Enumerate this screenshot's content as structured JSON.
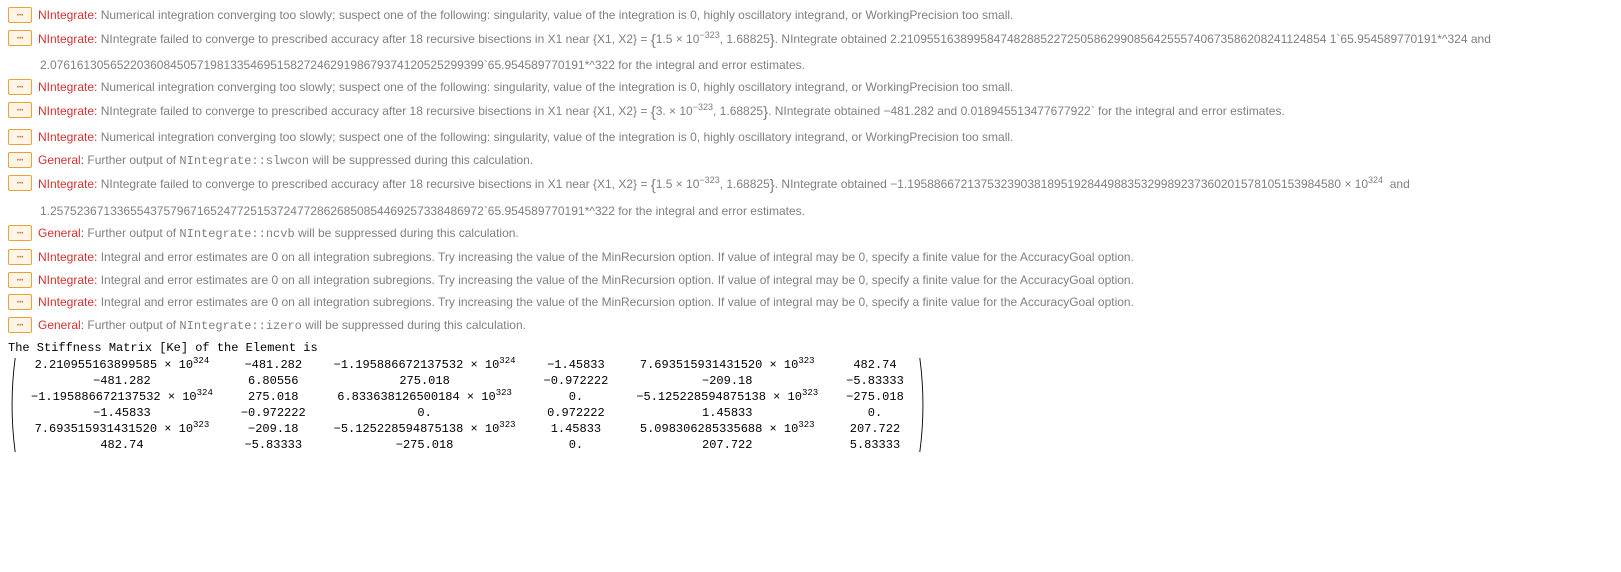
{
  "colors": {
    "error_tag": "#d1322d",
    "msg_text": "#808080",
    "icon_border": "#e7a23a",
    "icon_bg": "#fff4e6",
    "icon_fg": "#b87322",
    "body_bg": "#ffffff",
    "output_text": "#000000"
  },
  "icon_glyph": "⋯",
  "messages": [
    {
      "tag": "NIntegrate:",
      "text": "Numerical integration converging too slowly; suspect one of the following: singularity, value of the integration is 0, highly oscillatory integrand, or WorkingPrecision too small."
    },
    {
      "tag": "NIntegrate:",
      "text_html": "NIntegrate failed to converge to prescribed accuracy after 18 recursive bisections in X1 near {X1, X2} = <span class=\"brace\">{</span>1.5 &times; 10<sup>&minus;323</sup>, 1.68825<span class=\"brace\">}</span>. NIntegrate obtained 2.2109551638995847482885227250586299085642555740673586208241124854 1`65.954589770191*^324 and",
      "continuation": "2.07616130565220360845057198133546951582724629198679374120525299399`65.954589770191*^322 for the integral and error estimates."
    },
    {
      "tag": "NIntegrate:",
      "text": "Numerical integration converging too slowly; suspect one of the following: singularity, value of the integration is 0, highly oscillatory integrand, or WorkingPrecision too small."
    },
    {
      "tag": "NIntegrate:",
      "text_html": "NIntegrate failed to converge to prescribed accuracy after 18 recursive bisections in X1 near {X1, X2} = <span class=\"brace\">{</span>3. &times; 10<sup>&minus;323</sup>, 1.68825<span class=\"brace\">}</span>. NIntegrate obtained &minus;481.282 and 0.018945513477677922` for the integral and error estimates."
    },
    {
      "tag": "NIntegrate:",
      "text": "Numerical integration converging too slowly; suspect one of the following: singularity, value of the integration is 0, highly oscillatory integrand, or WorkingPrecision too small."
    },
    {
      "tag": "General:",
      "text_html": "Further output of <span class=\"tt\">NIntegrate::slwcon</span> will be suppressed during this calculation."
    },
    {
      "tag": "NIntegrate:",
      "text_html": "NIntegrate failed to converge to prescribed accuracy after 18 recursive bisections in X1 near {X1, X2} = <span class=\"brace\">{</span>1.5 &times; 10<sup>&minus;323</sup>, 1.68825<span class=\"brace\">}</span>. NIntegrate obtained &minus;1.19588667213753239038189519284498835329989237360201578105153984580 &times; 10<sup>324</sup>&nbsp; and",
      "continuation": "1.25752367133655437579671652477251537247728626850854469257338486972`65.954589770191*^322 for the integral and error estimates."
    },
    {
      "tag": "General:",
      "text_html": "Further output of <span class=\"tt\">NIntegrate::ncvb</span> will be suppressed during this calculation."
    },
    {
      "tag": "NIntegrate:",
      "text": "Integral and error estimates are 0 on all integration subregions. Try increasing the value of the MinRecursion option. If value of integral may be 0, specify a finite value for the AccuracyGoal option."
    },
    {
      "tag": "NIntegrate:",
      "text": "Integral and error estimates are 0 on all integration subregions. Try increasing the value of the MinRecursion option. If value of integral may be 0, specify a finite value for the AccuracyGoal option."
    },
    {
      "tag": "NIntegrate:",
      "text": "Integral and error estimates are 0 on all integration subregions. Try increasing the value of the MinRecursion option. If value of integral may be 0, specify a finite value for the AccuracyGoal option."
    },
    {
      "tag": "General:",
      "text_html": "Further output of <span class=\"tt\">NIntegrate::izero</span> will be suppressed during this calculation."
    }
  ],
  "output_label": "The Stiffness Matrix [Ke] of the Element is",
  "matrix": {
    "rows": [
      [
        "2.210955163899585 &times; 10<sup>324</sup>",
        "&minus;481.282",
        "&minus;1.195886672137532 &times; 10<sup>324</sup>",
        "&minus;1.45833",
        "7.693515931431520 &times; 10<sup>323</sup>",
        "482.74"
      ],
      [
        "&minus;481.282",
        "6.80556",
        "275.018",
        "&minus;0.972222",
        "&minus;209.18",
        "&minus;5.83333"
      ],
      [
        "&minus;1.195886672137532 &times; 10<sup>324</sup>",
        "275.018",
        "6.833638126500184 &times; 10<sup>323</sup>",
        "0.",
        "&minus;5.125228594875138 &times; 10<sup>323</sup>",
        "&minus;275.018"
      ],
      [
        "&minus;1.45833",
        "&minus;0.972222",
        "0.",
        "0.972222",
        "1.45833",
        "0."
      ],
      [
        "7.693515931431520 &times; 10<sup>323</sup>",
        "&minus;209.18",
        "&minus;5.125228594875138 &times; 10<sup>323</sup>",
        "1.45833",
        "5.098306285335688 &times; 10<sup>323</sup>",
        "207.722"
      ],
      [
        "482.74",
        "&minus;5.83333",
        "&minus;275.018",
        "0.",
        "207.722",
        "5.83333"
      ]
    ]
  }
}
